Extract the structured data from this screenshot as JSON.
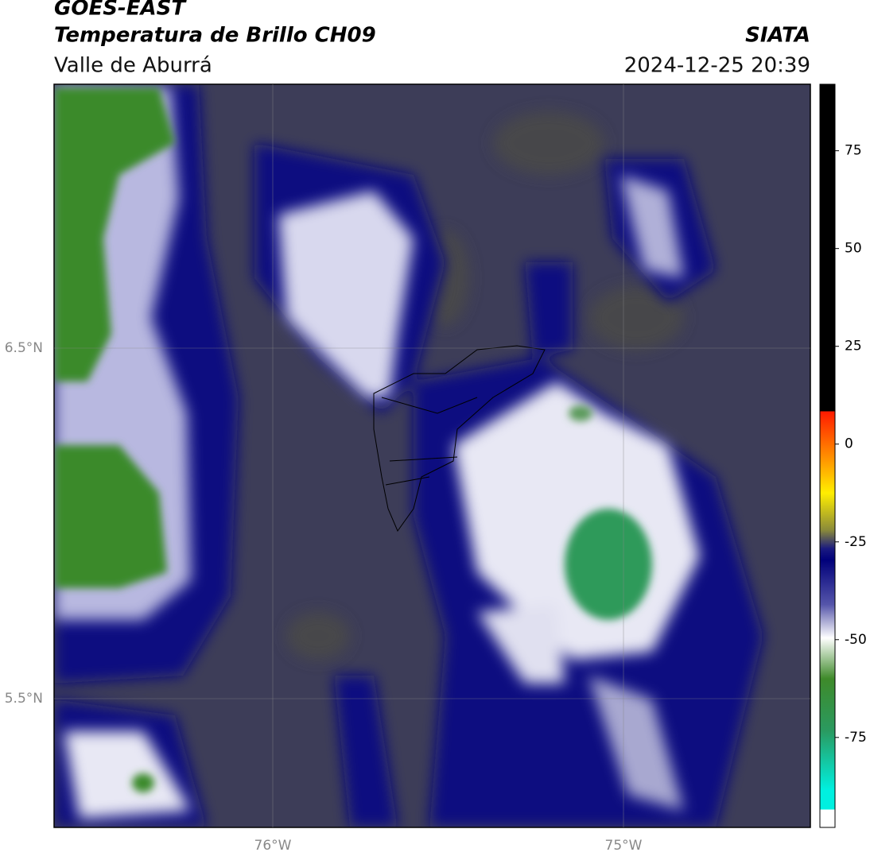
{
  "header": {
    "title": "GOES-EAST",
    "subtitle": "Temperatura de Brillo CH09",
    "region": "Valle de Aburrá",
    "source": "SIATA",
    "datetime": "2024-12-25 20:39"
  },
  "map": {
    "lat_ticks": [
      "6.5°N",
      "5.5°N"
    ],
    "lon_ticks": [
      "76°W",
      "75°W"
    ]
  },
  "colorbar": {
    "lim": [
      -98,
      92
    ],
    "ticks": [
      75,
      50,
      25,
      0,
      -25,
      -50,
      -75
    ]
  }
}
